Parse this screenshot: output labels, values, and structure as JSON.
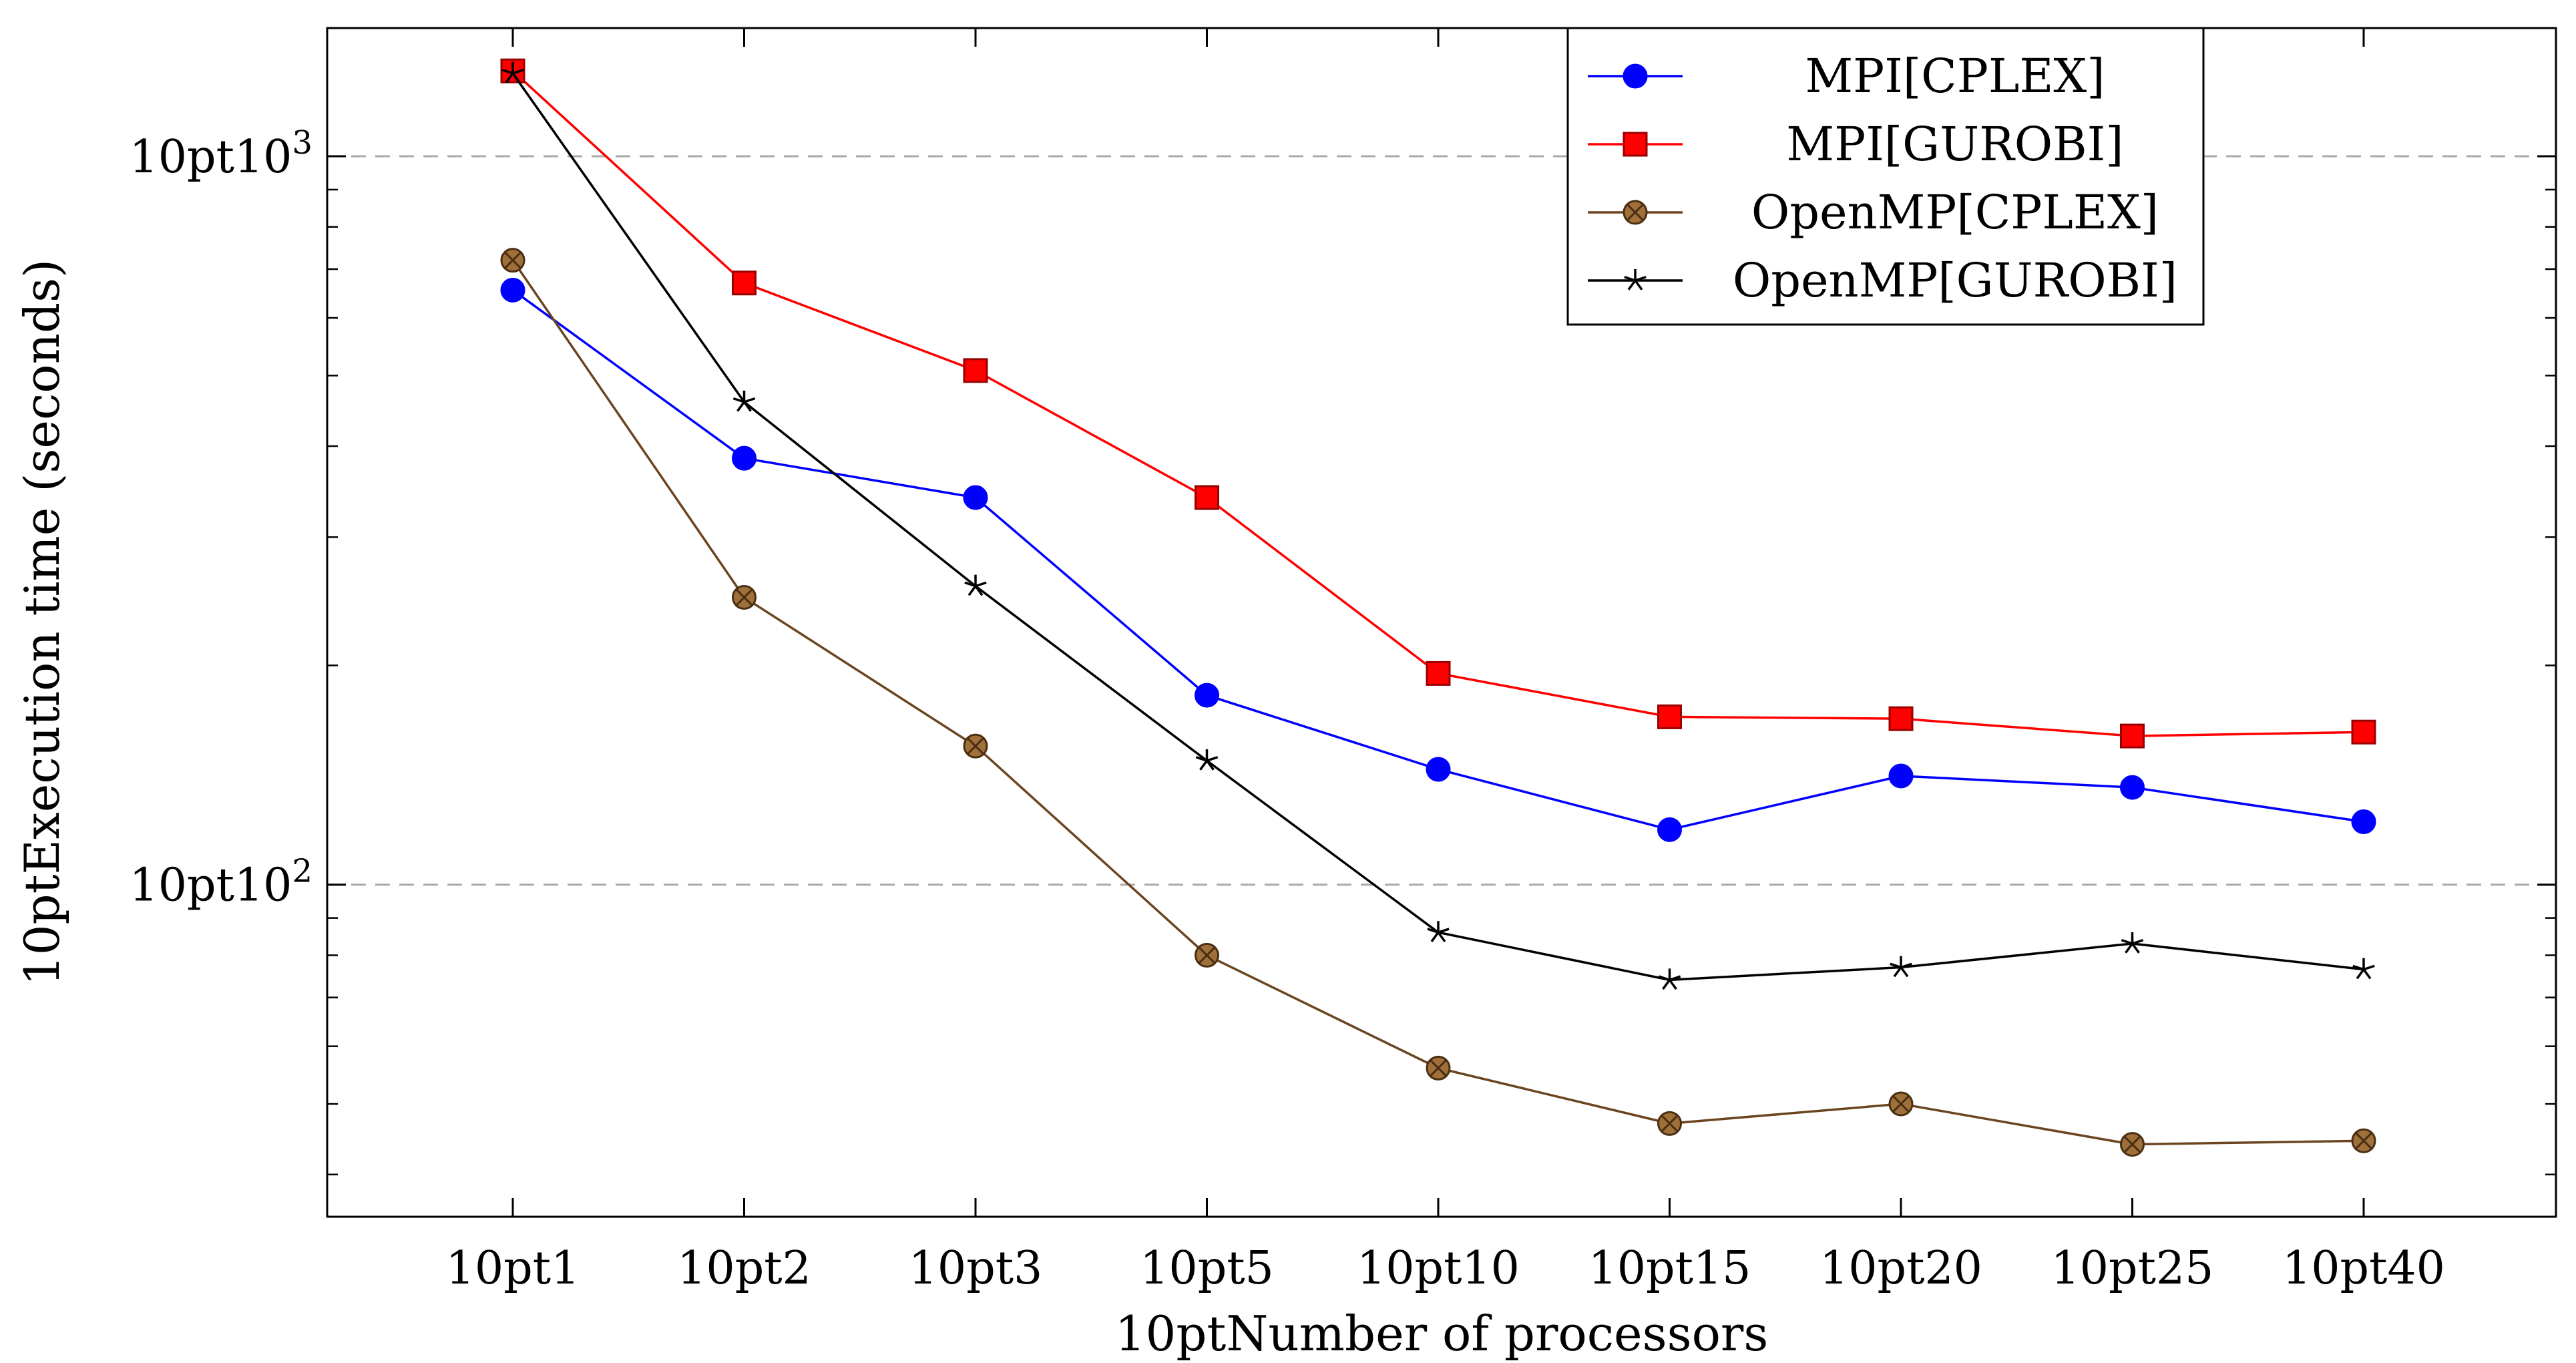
{
  "chart_data": {
    "type": "line",
    "title": "",
    "xlabel": "10ptNumber of processors",
    "ylabel": "10ptExecution time (seconds)",
    "yscale": "log",
    "ylim": [
      35,
      1500
    ],
    "y_major_ticks": [
      {
        "value": 100,
        "base": "10pt10",
        "exp": "2"
      },
      {
        "value": 1000,
        "base": "10pt10",
        "exp": "3"
      }
    ],
    "y_minor_ticks": [
      40,
      50,
      60,
      70,
      80,
      90,
      200,
      300,
      400,
      500,
      600,
      700,
      800,
      900
    ],
    "grid": "horizontal dashed at major ticks",
    "legend_position": "top-right",
    "categories": [
      "10pt1",
      "10pt2",
      "10pt3",
      "10pt5",
      "10pt10",
      "10pt15",
      "10pt20",
      "10pt25",
      "10pt40"
    ],
    "series": [
      {
        "name": "MPI[CPLEX]",
        "color": "#0000ff",
        "marker": "circle",
        "values": [
          655,
          385,
          340,
          182,
          144,
          119,
          141,
          136,
          122
        ]
      },
      {
        "name": "MPI[GUROBI]",
        "color": "#ff0000",
        "marker": "square",
        "values": [
          1310,
          670,
          508,
          340,
          195,
          170,
          169,
          160,
          162
        ]
      },
      {
        "name": "OpenMP[CPLEX]",
        "color": "#6b4520",
        "marker": "circle-cross",
        "values": [
          720,
          248,
          155,
          80,
          56,
          47,
          50,
          44,
          44.5
        ]
      },
      {
        "name": "OpenMP[GUROBI]",
        "color": "#000000",
        "marker": "star",
        "values": [
          1300,
          460,
          257,
          148,
          86,
          74,
          77,
          83,
          76.5
        ]
      }
    ]
  }
}
